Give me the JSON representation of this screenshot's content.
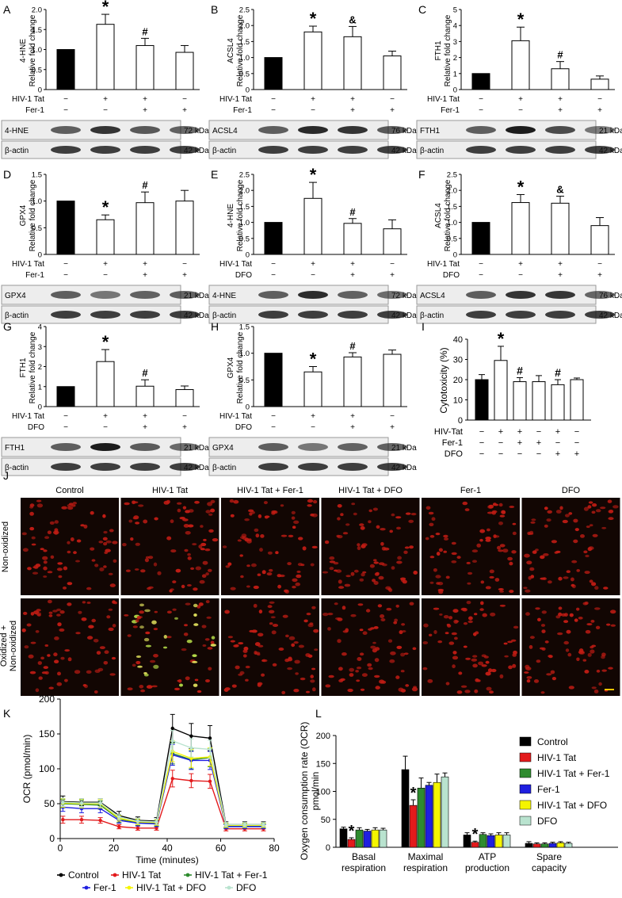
{
  "panels": [
    {
      "letter": "A",
      "ylabel": "Relative fold change",
      "protein": "4-HNE",
      "values": [
        1.0,
        1.63,
        1.1,
        0.93
      ],
      "errors": [
        0,
        0.25,
        0.18,
        0.17
      ],
      "marks": [
        "",
        "*",
        "#",
        ""
      ],
      "ylim": [
        0,
        2.0
      ],
      "yticks": [
        "0",
        "0.5",
        "1.0",
        "1.5",
        "2.0"
      ],
      "treat1": "HIV-1 Tat",
      "treat1_signs": [
        "−",
        "+",
        "+",
        "−"
      ],
      "treat2": "Fer-1",
      "treat2_signs": [
        "−",
        "−",
        "+",
        "+"
      ],
      "blot": "4-HNE",
      "blot_kda": "72 kDa",
      "actin": "β-actin",
      "actin_kda": "42 kDa"
    },
    {
      "letter": "B",
      "ylabel": "Relative fold change",
      "protein": "ACSL4",
      "values": [
        1.0,
        1.8,
        1.65,
        1.05
      ],
      "errors": [
        0,
        0.18,
        0.32,
        0.15
      ],
      "marks": [
        "",
        "*",
        "&",
        ""
      ],
      "ylim": [
        0,
        2.5
      ],
      "yticks": [
        "0",
        "0.5",
        "1.0",
        "1.5",
        "2.0",
        "2.5"
      ],
      "treat1": "HIV-1 Tat",
      "treat1_signs": [
        "−",
        "+",
        "+",
        "−"
      ],
      "treat2": "Fer-1",
      "treat2_signs": [
        "−",
        "−",
        "+",
        "+"
      ],
      "blot": "ACSL4",
      "blot_kda": "76 kDa",
      "actin": "β-actin",
      "actin_kda": "42 kDa"
    },
    {
      "letter": "C",
      "ylabel": "Relative fold change",
      "protein": "FTH1",
      "values": [
        1.0,
        3.05,
        1.3,
        0.65
      ],
      "errors": [
        0,
        0.85,
        0.45,
        0.2
      ],
      "marks": [
        "",
        "*",
        "#",
        ""
      ],
      "ylim": [
        0,
        5
      ],
      "yticks": [
        "0",
        "1",
        "2",
        "3",
        "4",
        "5"
      ],
      "treat1": "HIV-1 Tat",
      "treat1_signs": [
        "−",
        "+",
        "+",
        "−"
      ],
      "treat2": "Fer-1",
      "treat2_signs": [
        "−",
        "−",
        "+",
        "+"
      ],
      "blot": "FTH1",
      "blot_kda": "21 kDa",
      "actin": "β-actin",
      "actin_kda": "42 kDa"
    },
    {
      "letter": "D",
      "ylabel": "Relative fold change",
      "protein": "GPX4",
      "values": [
        1.0,
        0.65,
        0.97,
        1.0
      ],
      "errors": [
        0,
        0.09,
        0.2,
        0.2
      ],
      "marks": [
        "",
        "*",
        "#",
        ""
      ],
      "ylim": [
        0,
        1.5
      ],
      "yticks": [
        "0",
        "0.5",
        "1.0",
        "1.5"
      ],
      "treat1": "HIV-1 Tat",
      "treat1_signs": [
        "−",
        "+",
        "+",
        "−"
      ],
      "treat2": "Fer-1",
      "treat2_signs": [
        "−",
        "−",
        "+",
        "+"
      ],
      "blot": "GPX4",
      "blot_kda": "21 kDa",
      "actin": "β-actin",
      "actin_kda": "42 kDa"
    },
    {
      "letter": "E",
      "ylabel": "Relative fold change",
      "protein": "4-HNE",
      "values": [
        1.0,
        1.75,
        0.97,
        0.8
      ],
      "errors": [
        0,
        0.5,
        0.15,
        0.28
      ],
      "marks": [
        "",
        "*",
        "#",
        ""
      ],
      "ylim": [
        0,
        2.5
      ],
      "yticks": [
        "0",
        "0.5",
        "1.0",
        "1.5",
        "2.0",
        "2.5"
      ],
      "treat1": "HIV-1 Tat",
      "treat1_signs": [
        "−",
        "+",
        "+",
        "−"
      ],
      "treat2": "DFO",
      "treat2_signs": [
        "−",
        "−",
        "+",
        "+"
      ],
      "blot": "4-HNE",
      "blot_kda": "72 kDa",
      "actin": "β-actin",
      "actin_kda": "42 kDa"
    },
    {
      "letter": "F",
      "ylabel": "Relative fold change",
      "protein": "ACSL4",
      "values": [
        1.0,
        1.62,
        1.6,
        0.9
      ],
      "errors": [
        0,
        0.25,
        0.22,
        0.25
      ],
      "marks": [
        "",
        "*",
        "&",
        ""
      ],
      "ylim": [
        0,
        2.5
      ],
      "yticks": [
        "0",
        "0.5",
        "1.0",
        "1.5",
        "2.0",
        "2.5"
      ],
      "treat1": "HIV-1 Tat",
      "treat1_signs": [
        "−",
        "+",
        "+",
        "−"
      ],
      "treat2": "DFO",
      "treat2_signs": [
        "−",
        "−",
        "+",
        "+"
      ],
      "blot": "ACSL4",
      "blot_kda": "76 kDa",
      "actin": "β-actin",
      "actin_kda": "42 kDa"
    },
    {
      "letter": "G",
      "ylabel": "Relative fold change",
      "protein": "FTH1",
      "values": [
        1.0,
        2.25,
        1.02,
        0.85
      ],
      "errors": [
        0,
        0.6,
        0.32,
        0.18
      ],
      "marks": [
        "",
        "*",
        "#",
        ""
      ],
      "ylim": [
        0,
        4
      ],
      "yticks": [
        "0",
        "1",
        "2",
        "3",
        "4"
      ],
      "treat1": "HIV-1 Tat",
      "treat1_signs": [
        "−",
        "+",
        "+",
        "−"
      ],
      "treat2": "DFO",
      "treat2_signs": [
        "−",
        "−",
        "+",
        "+"
      ],
      "blot": "FTH1",
      "blot_kda": "21 kDa",
      "actin": "β-actin",
      "actin_kda": "42 kDa"
    },
    {
      "letter": "H",
      "ylabel": "Relative fold change",
      "protein": "GPX4",
      "values": [
        1.0,
        0.65,
        0.93,
        0.98
      ],
      "errors": [
        0,
        0.1,
        0.08,
        0.08
      ],
      "marks": [
        "",
        "*",
        "#",
        ""
      ],
      "ylim": [
        0,
        1.5
      ],
      "yticks": [
        "0",
        "0.5",
        "1.0",
        "1.5"
      ],
      "treat1": "HIV-1 Tat",
      "treat1_signs": [
        "−",
        "+",
        "+",
        "−"
      ],
      "treat2": "DFO",
      "treat2_signs": [
        "−",
        "−",
        "+",
        "+"
      ],
      "blot": "GPX4",
      "blot_kda": "21 kDa",
      "actin": "β-actin",
      "actin_kda": "42 kDa"
    }
  ],
  "panel_i": {
    "letter": "I",
    "ylabel": "Cytotoxicity (%)",
    "values": [
      20,
      29.5,
      19,
      19,
      17.5,
      20
    ],
    "errors": [
      2.5,
      7,
      2,
      3,
      2.5,
      0.8
    ],
    "marks": [
      "",
      "*",
      "#",
      "",
      "#",
      ""
    ],
    "ylim": [
      0,
      40
    ],
    "yticks": [
      "0",
      "10",
      "20",
      "30",
      "40"
    ],
    "rows": [
      {
        "label": "HIV-Tat",
        "signs": [
          "−",
          "+",
          "+",
          "−",
          "+",
          "−"
        ]
      },
      {
        "label": "Fer-1",
        "signs": [
          "−",
          "−",
          "+",
          "+",
          "−",
          "−"
        ]
      },
      {
        "label": "DFO",
        "signs": [
          "−",
          "−",
          "−",
          "−",
          "+",
          "+"
        ]
      }
    ]
  },
  "panel_j": {
    "letter": "J",
    "columns": [
      "Control",
      "HIV-1 Tat",
      "HIV-1 Tat + Fer-1",
      "HIV-1 Tat + DFO",
      "Fer-1",
      "DFO"
    ],
    "row1": "Non-oxidized",
    "row2a": "Oxidized +",
    "row2b": "Non-oxidized"
  },
  "colors": {
    "Control": "#000000",
    "HIV-1 Tat": "#e31a1c",
    "HIV-1 Tat + Fer-1": "#2e8b2e",
    "Fer-1": "#1f1fe0",
    "HIV-1 Tat + DFO": "#f5f500",
    "DFO": "#b9e3cf"
  },
  "chart_data": [
    {
      "type": "line",
      "title": "",
      "xlabel": "Time (minutes)",
      "ylabel": "OCR (pmol/min)",
      "xlim": [
        0,
        80
      ],
      "ylim": [
        0,
        200
      ],
      "xticks": [
        "0",
        "20",
        "40",
        "60",
        "80"
      ],
      "yticks": [
        "0",
        "50",
        "100",
        "150",
        "200"
      ],
      "x": [
        1,
        8,
        15,
        22,
        29,
        36,
        42,
        49,
        56,
        62,
        69,
        76
      ],
      "series": [
        {
          "name": "Control",
          "values": [
            53,
            52,
            52,
            33,
            26,
            25,
            158,
            147,
            144,
            20,
            20,
            20
          ],
          "err": [
            8,
            5,
            5,
            6,
            5,
            5,
            20,
            18,
            18,
            4,
            4,
            4
          ]
        },
        {
          "name": "HIV-1 Tat",
          "values": [
            27,
            27,
            26,
            17,
            15,
            15,
            86,
            83,
            82,
            14,
            14,
            14
          ],
          "err": [
            5,
            5,
            4,
            3,
            3,
            3,
            12,
            10,
            10,
            3,
            3,
            3
          ]
        },
        {
          "name": "HIV-1 Tat + Fer-1",
          "values": [
            50,
            49,
            48,
            28,
            23,
            22,
            122,
            113,
            116,
            18,
            18,
            18
          ],
          "err": [
            6,
            6,
            6,
            5,
            4,
            4,
            15,
            13,
            13,
            3,
            3,
            3
          ]
        },
        {
          "name": "Fer-1",
          "values": [
            45,
            43,
            43,
            26,
            22,
            21,
            120,
            112,
            112,
            17,
            17,
            17
          ],
          "err": [
            6,
            6,
            6,
            4,
            4,
            4,
            15,
            13,
            13,
            3,
            3,
            3
          ]
        },
        {
          "name": "HIV-1 Tat + DFO",
          "values": [
            51,
            50,
            50,
            29,
            24,
            23,
            125,
            115,
            117,
            19,
            19,
            19
          ],
          "err": [
            6,
            6,
            6,
            4,
            4,
            4,
            15,
            13,
            13,
            3,
            3,
            3
          ]
        },
        {
          "name": "DFO",
          "values": [
            52,
            51,
            51,
            31,
            25,
            24,
            140,
            130,
            128,
            20,
            20,
            20
          ],
          "err": [
            6,
            6,
            6,
            4,
            4,
            4,
            15,
            13,
            13,
            3,
            3,
            3
          ]
        }
      ],
      "legend": "bottom",
      "legend_row1": [
        "Control",
        "HIV-1 Tat",
        "HIV-1 Tat + Fer-1"
      ],
      "legend_row2": [
        "Fer-1",
        "HIV-1 Tat + DFO",
        "DFO"
      ]
    },
    {
      "type": "bar",
      "title": "",
      "ylabel": "Oxygen consumption rate (OCR) pmol/min",
      "ylabel_line1": "Oxygen consumption rate (OCR)",
      "ylabel_line2": "pmol/min",
      "ylim": [
        0,
        200
      ],
      "yticks": [
        "0",
        "50",
        "100",
        "150",
        "200"
      ],
      "categories": [
        "Basal respiration",
        "Maximal respiration",
        "ATP production",
        "Spare capacity"
      ],
      "category_lines": [
        [
          "Basal",
          "respiration"
        ],
        [
          "Maximal",
          "respiration"
        ],
        [
          "ATP",
          "production"
        ],
        [
          "Spare",
          "capacity"
        ]
      ],
      "series": [
        {
          "name": "Control",
          "values": [
            33,
            139,
            22,
            7
          ],
          "err": [
            3,
            24,
            4,
            3
          ]
        },
        {
          "name": "HIV-1 Tat",
          "values": [
            14,
            75,
            9,
            6
          ],
          "err": [
            3,
            10,
            2,
            2
          ]
        },
        {
          "name": "HIV-1 Tat + Fer-1",
          "values": [
            31,
            106,
            23,
            6
          ],
          "err": [
            4,
            18,
            3,
            2
          ]
        },
        {
          "name": "Fer-1",
          "values": [
            29,
            111,
            21,
            7
          ],
          "err": [
            3,
            5,
            3,
            2
          ]
        },
        {
          "name": "HIV-1 Tat + DFO",
          "values": [
            31,
            116,
            22,
            8
          ],
          "err": [
            4,
            15,
            4,
            2
          ]
        },
        {
          "name": "DFO",
          "values": [
            31,
            126,
            22,
            7
          ],
          "err": [
            3,
            7,
            4,
            2
          ]
        }
      ],
      "marks": [
        [
          1,
          "*"
        ],
        [
          5,
          "*"
        ],
        [
          9,
          "*"
        ]
      ],
      "legend": "top-right"
    }
  ],
  "panel_k_letter": "K",
  "panel_l_letter": "L"
}
